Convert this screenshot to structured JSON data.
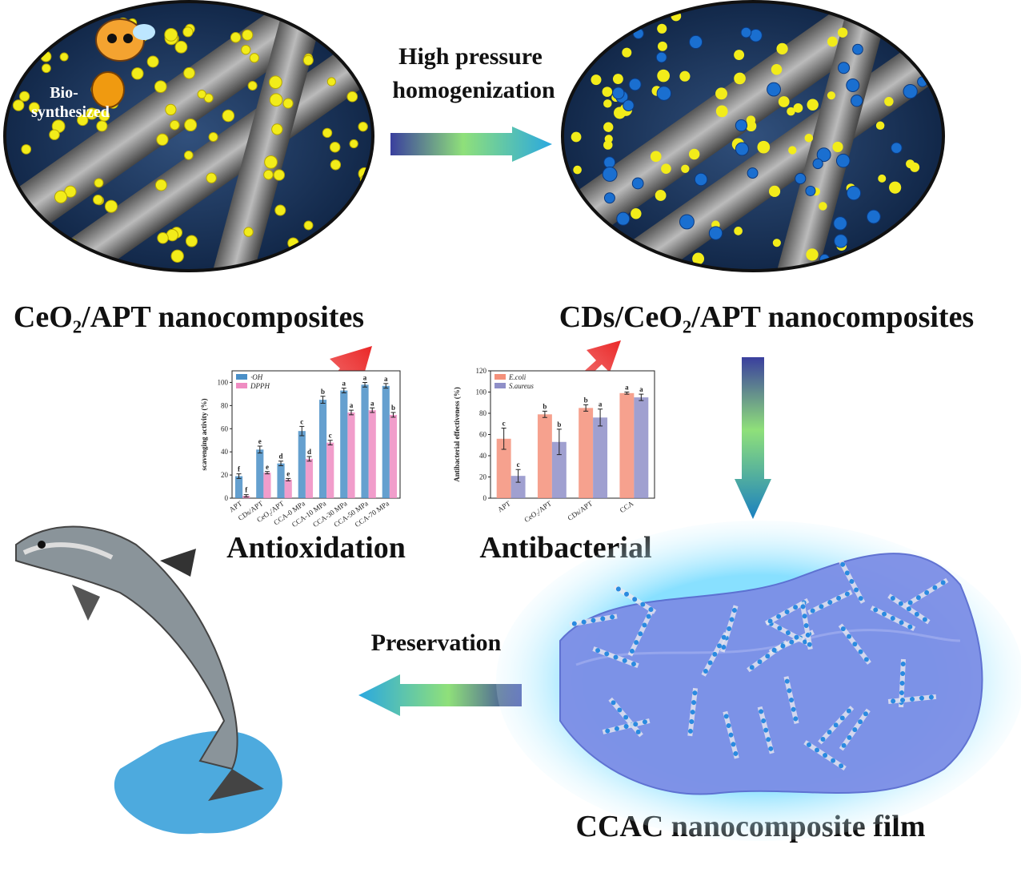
{
  "labels": {
    "bio": "Bio-",
    "bio2": "synthesized",
    "process1": "High pressure",
    "process2": "homogenization",
    "left_material": "CeO₂/APT nanocomposites",
    "right_material": "CDs/CeO₂/APT nanocomposites",
    "antioxidation": "Antioxidation",
    "antibacterial": "Antibacterial",
    "preservation": "Preservation",
    "film": "CCAC nanocomposite film"
  },
  "charts": [
    {
      "type": "bar",
      "ylabel": "scavenging activity (%)",
      "categories": [
        "APT",
        "CDs/APT",
        "CeO₂/APT",
        "CCA-0 MPa",
        "CCA-10 MPa",
        "CCA-30 MPa",
        "CCA-50 MPa",
        "CCA-70 MPa"
      ],
      "ylim": [
        0,
        110
      ],
      "yticks": [
        0,
        20,
        40,
        60,
        80,
        100
      ],
      "legend": "top-left",
      "series": [
        {
          "name": "·OH",
          "color": "#4a8fc7",
          "values": [
            19,
            42,
            30,
            58,
            85,
            93,
            98,
            97
          ],
          "errors": [
            2,
            3,
            2,
            4,
            3,
            2,
            2,
            2
          ],
          "letters": [
            "f",
            "e",
            "d",
            "c",
            "b",
            "a",
            "a",
            "a"
          ]
        },
        {
          "name": "DPPH",
          "color": "#ef8cc2",
          "values": [
            2,
            22,
            16,
            34,
            48,
            74,
            76,
            72
          ],
          "errors": [
            1,
            1,
            1,
            2,
            2,
            2,
            2,
            2
          ],
          "letters": [
            "f",
            "e",
            "e",
            "d",
            "c",
            "a",
            "a",
            "b"
          ]
        }
      ]
    },
    {
      "type": "bar",
      "ylabel": "Antibacterial effectiveness (%)",
      "categories": [
        "APT",
        "CeO₂/APT",
        "CDs/APT",
        "CCA"
      ],
      "ylim": [
        0,
        120
      ],
      "yticks": [
        0,
        20,
        40,
        60,
        80,
        100,
        120
      ],
      "legend": "top-left",
      "series": [
        {
          "name": "E.coli",
          "color": "#f4907a",
          "values": [
            56,
            79,
            85,
            99
          ],
          "errors": [
            10,
            3,
            3,
            1
          ],
          "letters": [
            "c",
            "b",
            "b",
            "a"
          ]
        },
        {
          "name": "S.aureus",
          "color": "#8f8fc8",
          "values": [
            21,
            53,
            76,
            95
          ],
          "errors": [
            6,
            12,
            8,
            3
          ],
          "letters": [
            "c",
            "b",
            "a",
            "a"
          ]
        }
      ]
    }
  ]
}
